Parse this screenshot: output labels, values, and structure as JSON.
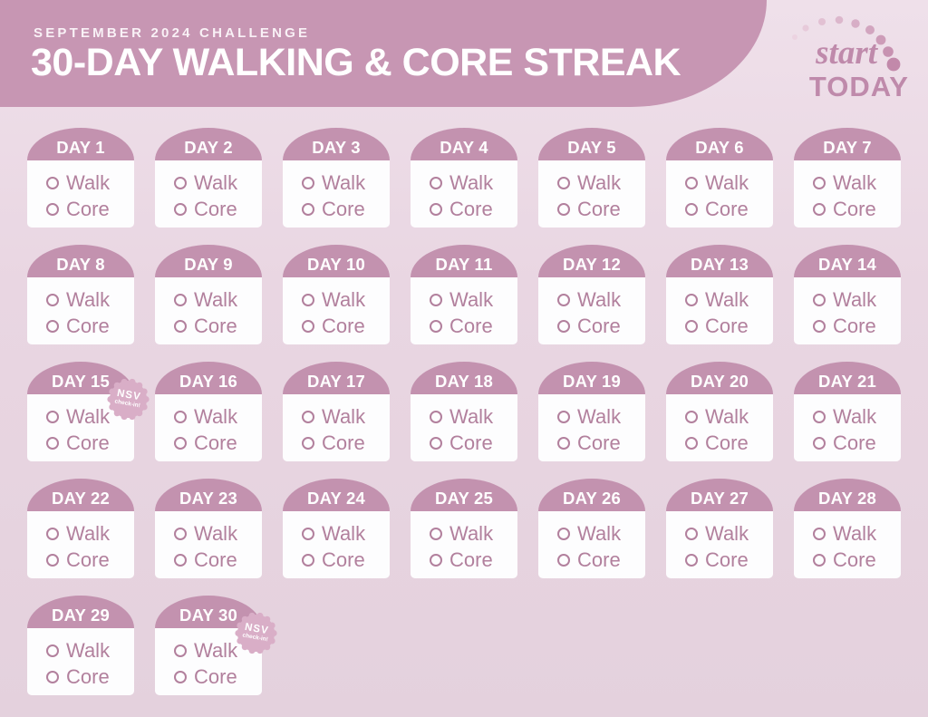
{
  "colors": {
    "page_bg": "#e9d6e2",
    "banner_mauve": "#c796b3",
    "dome_mauve": "#c392af",
    "card_white": "#fdfdfe",
    "task_mauve": "#b2809d",
    "badge_pink": "#d9aec7",
    "logo_mauve": "#bf8aab",
    "dot_light": "#ecd3e1",
    "dot_dark": "#c289aa"
  },
  "header": {
    "kicker": "SEPTEMBER 2024 CHALLENGE",
    "title": "30-DAY WALKING & CORE STREAK"
  },
  "logo": {
    "script_word": "start",
    "block_word": "TODAY"
  },
  "nsv_badge": {
    "title": "NSV",
    "subtitle": "check-in!"
  },
  "days": [
    {
      "label": "DAY 1",
      "tasks": [
        "Walk",
        "Core"
      ],
      "nsv": false
    },
    {
      "label": "DAY 2",
      "tasks": [
        "Walk",
        "Core"
      ],
      "nsv": false
    },
    {
      "label": "DAY 3",
      "tasks": [
        "Walk",
        "Core"
      ],
      "nsv": false
    },
    {
      "label": "DAY 4",
      "tasks": [
        "Walk",
        "Core"
      ],
      "nsv": false
    },
    {
      "label": "DAY 5",
      "tasks": [
        "Walk",
        "Core"
      ],
      "nsv": false
    },
    {
      "label": "DAY 6",
      "tasks": [
        "Walk",
        "Core"
      ],
      "nsv": false
    },
    {
      "label": "DAY 7",
      "tasks": [
        "Walk",
        "Core"
      ],
      "nsv": false
    },
    {
      "label": "DAY 8",
      "tasks": [
        "Walk",
        "Core"
      ],
      "nsv": false
    },
    {
      "label": "DAY 9",
      "tasks": [
        "Walk",
        "Core"
      ],
      "nsv": false
    },
    {
      "label": "DAY 10",
      "tasks": [
        "Walk",
        "Core"
      ],
      "nsv": false
    },
    {
      "label": "DAY 11",
      "tasks": [
        "Walk",
        "Core"
      ],
      "nsv": false
    },
    {
      "label": "DAY 12",
      "tasks": [
        "Walk",
        "Core"
      ],
      "nsv": false
    },
    {
      "label": "DAY 13",
      "tasks": [
        "Walk",
        "Core"
      ],
      "nsv": false
    },
    {
      "label": "DAY 14",
      "tasks": [
        "Walk",
        "Core"
      ],
      "nsv": false
    },
    {
      "label": "DAY 15",
      "tasks": [
        "Walk",
        "Core"
      ],
      "nsv": true
    },
    {
      "label": "DAY 16",
      "tasks": [
        "Walk",
        "Core"
      ],
      "nsv": false
    },
    {
      "label": "DAY 17",
      "tasks": [
        "Walk",
        "Core"
      ],
      "nsv": false
    },
    {
      "label": "DAY 18",
      "tasks": [
        "Walk",
        "Core"
      ],
      "nsv": false
    },
    {
      "label": "DAY 19",
      "tasks": [
        "Walk",
        "Core"
      ],
      "nsv": false
    },
    {
      "label": "DAY 20",
      "tasks": [
        "Walk",
        "Core"
      ],
      "nsv": false
    },
    {
      "label": "DAY 21",
      "tasks": [
        "Walk",
        "Core"
      ],
      "nsv": false
    },
    {
      "label": "DAY 22",
      "tasks": [
        "Walk",
        "Core"
      ],
      "nsv": false
    },
    {
      "label": "DAY 23",
      "tasks": [
        "Walk",
        "Core"
      ],
      "nsv": false
    },
    {
      "label": "DAY 24",
      "tasks": [
        "Walk",
        "Core"
      ],
      "nsv": false
    },
    {
      "label": "DAY 25",
      "tasks": [
        "Walk",
        "Core"
      ],
      "nsv": false
    },
    {
      "label": "DAY 26",
      "tasks": [
        "Walk",
        "Core"
      ],
      "nsv": false
    },
    {
      "label": "DAY 27",
      "tasks": [
        "Walk",
        "Core"
      ],
      "nsv": false
    },
    {
      "label": "DAY 28",
      "tasks": [
        "Walk",
        "Core"
      ],
      "nsv": false
    },
    {
      "label": "DAY 29",
      "tasks": [
        "Walk",
        "Core"
      ],
      "nsv": false
    },
    {
      "label": "DAY 30",
      "tasks": [
        "Walk",
        "Core"
      ],
      "nsv": true
    }
  ]
}
